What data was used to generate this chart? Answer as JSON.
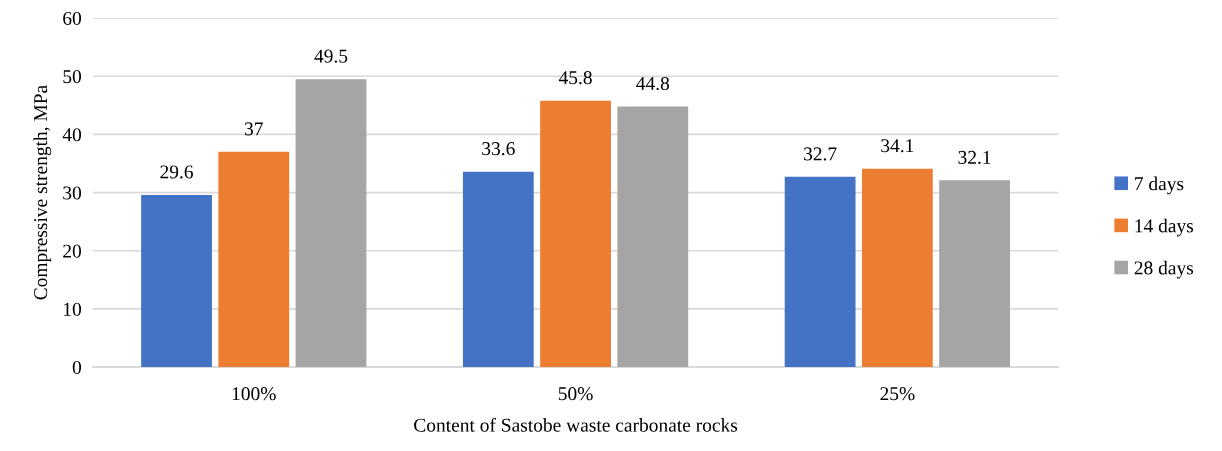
{
  "chart_data": {
    "type": "bar",
    "xlabel": "Content of Sastobe waste carbonate rocks",
    "ylabel": "Compressive strength, MPa",
    "categories": [
      "100%",
      "50%",
      "25%"
    ],
    "series": [
      {
        "name": "7 days",
        "color": "#4472c4",
        "values": [
          29.6,
          33.6,
          32.7
        ]
      },
      {
        "name": "14 days",
        "color": "#ed7d31",
        "values": [
          37,
          45.8,
          34.1
        ]
      },
      {
        "name": "28 days",
        "color": "#a5a5a5",
        "values": [
          49.5,
          44.8,
          32.1
        ]
      }
    ],
    "ylim": [
      0,
      60
    ],
    "yticks": [
      0,
      10,
      20,
      30,
      40,
      50,
      60
    ],
    "grid": "y",
    "legend": "right",
    "data_labels": true
  }
}
